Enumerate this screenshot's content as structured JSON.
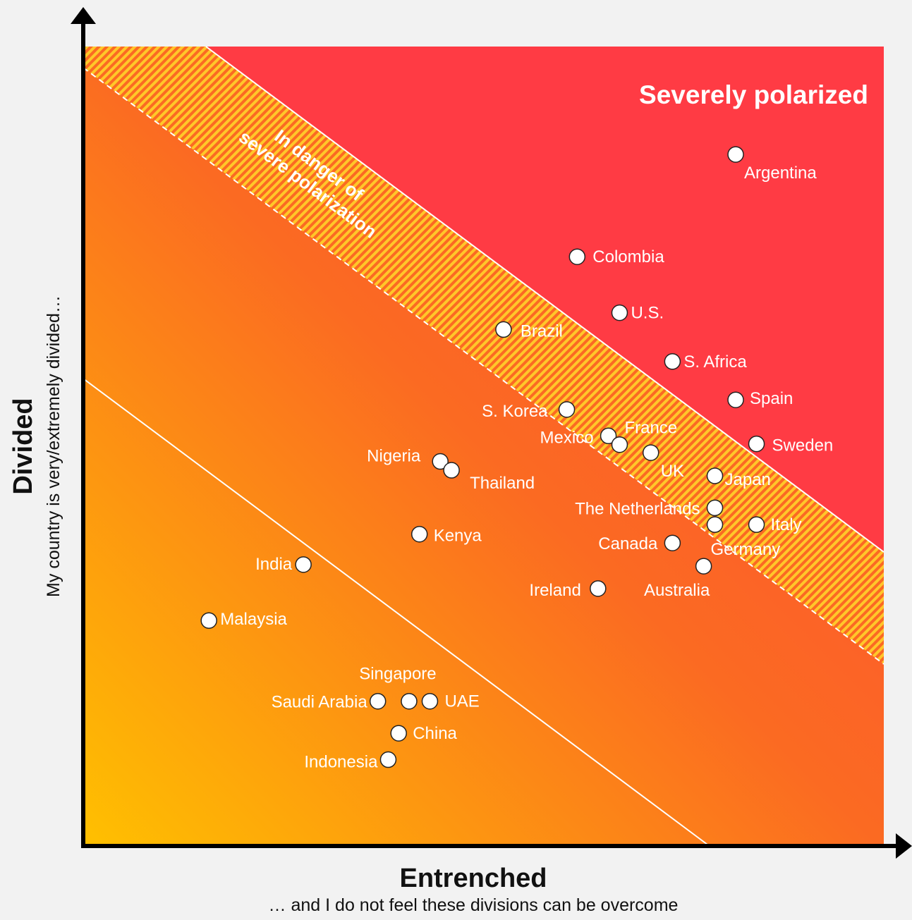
{
  "chart_data": {
    "type": "scatter",
    "title": "",
    "xlabel": "Entrenched",
    "xlabel_sub": "… and I do not feel these divisions can be overcome",
    "ylabel": "Divided",
    "ylabel_sub": "My country is very/extremely divided…",
    "xlim": [
      0,
      100
    ],
    "ylim": [
      0,
      100
    ],
    "axis_ticks": false,
    "grid": false,
    "zones": [
      {
        "name": "severe",
        "label": "Severely polarized"
      },
      {
        "name": "danger",
        "label_lines": [
          "In danger of",
          "severe polarization"
        ]
      }
    ],
    "colors": {
      "severe": "#ff3b44",
      "gradient_start": "#ffc000",
      "gradient_mid": "#fb6a22",
      "gradient_end": "#ff4a3a",
      "point_fill": "#ffffff",
      "point_stroke": "#222222"
    },
    "points": [
      {
        "name": "Argentina",
        "x": 81.5,
        "y": 86.5,
        "anchor": "start",
        "dx": 12,
        "dy": 34
      },
      {
        "name": "Colombia",
        "x": 61.7,
        "y": 73.7,
        "anchor": "start",
        "dx": 22,
        "dy": 8
      },
      {
        "name": "U.S.",
        "x": 67.0,
        "y": 66.7,
        "anchor": "start",
        "dx": 16,
        "dy": 8
      },
      {
        "name": "Brazil",
        "x": 52.5,
        "y": 64.6,
        "anchor": "start",
        "dx": 24,
        "dy": 10
      },
      {
        "name": "S. Africa",
        "x": 73.6,
        "y": 60.6,
        "anchor": "start",
        "dx": 16,
        "dy": 8
      },
      {
        "name": "Spain",
        "x": 81.5,
        "y": 55.8,
        "anchor": "start",
        "dx": 20,
        "dy": 6
      },
      {
        "name": "S. Korea",
        "x": 60.4,
        "y": 54.6,
        "anchor": "end",
        "dx": -27,
        "dy": 10
      },
      {
        "name": "Mexico",
        "x": 65.6,
        "y": 51.3,
        "anchor": "end",
        "dx": -21,
        "dy": 10
      },
      {
        "name": "France",
        "x": 67.0,
        "y": 50.2,
        "anchor": "start",
        "dx": 7,
        "dy": -16
      },
      {
        "name": "UK",
        "x": 70.9,
        "y": 49.2,
        "anchor": "start",
        "dx": 14,
        "dy": 34
      },
      {
        "name": "Sweden",
        "x": 84.1,
        "y": 50.3,
        "anchor": "start",
        "dx": 22,
        "dy": 10
      },
      {
        "name": "Nigeria",
        "x": 44.6,
        "y": 48.1,
        "anchor": "end",
        "dx": -28,
        "dy": 0
      },
      {
        "name": "Thailand",
        "x": 46.0,
        "y": 47.0,
        "anchor": "start",
        "dx": 26,
        "dy": 26
      },
      {
        "name": "Japan",
        "x": 78.9,
        "y": 46.3,
        "anchor": "start",
        "dx": 14,
        "dy": 13
      },
      {
        "name": "The Netherlands",
        "x": 78.9,
        "y": 42.3,
        "anchor": "end",
        "dx": -21,
        "dy": 9
      },
      {
        "name": "Germany",
        "x": 78.9,
        "y": 40.2,
        "anchor": "start",
        "dx": -6,
        "dy": 43
      },
      {
        "name": "Italy",
        "x": 84.1,
        "y": 40.2,
        "anchor": "start",
        "dx": 20,
        "dy": 8
      },
      {
        "name": "Kenya",
        "x": 42.0,
        "y": 39.0,
        "anchor": "start",
        "dx": 20,
        "dy": 10
      },
      {
        "name": "Canada",
        "x": 73.6,
        "y": 37.9,
        "anchor": "end",
        "dx": -21,
        "dy": 9
      },
      {
        "name": "India",
        "x": 27.5,
        "y": 35.2,
        "anchor": "end",
        "dx": -16,
        "dy": 7
      },
      {
        "name": "Australia",
        "x": 77.5,
        "y": 35.0,
        "anchor": "middle",
        "dx": -38,
        "dy": 42
      },
      {
        "name": "Ireland",
        "x": 64.3,
        "y": 32.2,
        "anchor": "end",
        "dx": -24,
        "dy": 10
      },
      {
        "name": "Malaysia",
        "x": 15.7,
        "y": 28.2,
        "anchor": "start",
        "dx": 16,
        "dy": 6
      },
      {
        "name": "Saudi Arabia",
        "x": 36.8,
        "y": 18.1,
        "anchor": "end",
        "dx": -15,
        "dy": 9
      },
      {
        "name": "Singapore",
        "x": 40.7,
        "y": 18.1,
        "anchor": "middle",
        "dx": -16,
        "dy": -31
      },
      {
        "name": "UAE",
        "x": 43.3,
        "y": 18.1,
        "anchor": "start",
        "dx": 21,
        "dy": 8
      },
      {
        "name": "China",
        "x": 39.4,
        "y": 14.1,
        "anchor": "start",
        "dx": 20,
        "dy": 8
      },
      {
        "name": "Indonesia",
        "x": 38.1,
        "y": 10.8,
        "anchor": "end",
        "dx": -15,
        "dy": 11
      }
    ]
  }
}
